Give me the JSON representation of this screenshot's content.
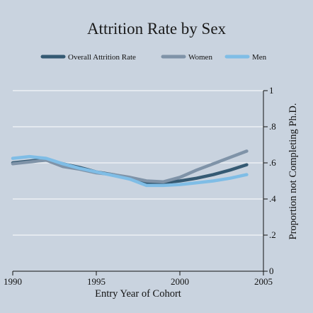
{
  "chart_data": {
    "type": "line",
    "title": "Attrition Rate by Sex",
    "xlabel": "Entry Year of Cohort",
    "ylabel": "Proportion not Completing Ph.D.",
    "xlim": [
      1990,
      2005
    ],
    "ylim": [
      0,
      1
    ],
    "x_ticks": [
      {
        "value": 1990,
        "label": "1990"
      },
      {
        "value": 1995,
        "label": "1995"
      },
      {
        "value": 2000,
        "label": "2000"
      },
      {
        "value": 2005,
        "label": "2005"
      }
    ],
    "y_ticks": [
      {
        "value": 0,
        "label": "0"
      },
      {
        "value": 0.2,
        "label": ".2"
      },
      {
        "value": 0.4,
        "label": ".4"
      },
      {
        "value": 0.6,
        "label": ".6"
      },
      {
        "value": 0.8,
        "label": ".8"
      },
      {
        "value": 1,
        "label": "1"
      }
    ],
    "y_axis_side": "right",
    "grid": true,
    "legend_position": "top",
    "colors": {
      "background": "#c9d3df",
      "grid": "#ffffff",
      "overall": "#355a73",
      "women": "#7f93a8",
      "men": "#7fbde6"
    },
    "series": [
      {
        "name": "Overall Attrition Rate",
        "color": "#355a73",
        "x": [
          1990,
          1991,
          1992,
          1993,
          1994,
          1995,
          1996,
          1997,
          1998,
          1999,
          2000,
          2001,
          2002,
          2003,
          2004
        ],
        "y": [
          0.6,
          0.61,
          0.62,
          0.595,
          0.575,
          0.55,
          0.535,
          0.515,
          0.49,
          0.49,
          0.5,
          0.515,
          0.535,
          0.56,
          0.59
        ]
      },
      {
        "name": "Women",
        "color": "#7f93a8",
        "x": [
          1990,
          1991,
          1992,
          1993,
          1994,
          1995,
          1996,
          1997,
          1998,
          1999,
          2000,
          2001,
          2002,
          2003,
          2004
        ],
        "y": [
          0.595,
          0.605,
          0.615,
          0.58,
          0.565,
          0.545,
          0.535,
          0.52,
          0.5,
          0.495,
          0.52,
          0.56,
          0.595,
          0.63,
          0.665
        ]
      },
      {
        "name": "Men",
        "color": "#7fbde6",
        "x": [
          1990,
          1991,
          1992,
          1993,
          1994,
          1995,
          1996,
          1997,
          1998,
          1999,
          2000,
          2001,
          2002,
          2003,
          2004
        ],
        "y": [
          0.625,
          0.635,
          0.625,
          0.595,
          0.57,
          0.55,
          0.53,
          0.51,
          0.475,
          0.475,
          0.48,
          0.49,
          0.5,
          0.515,
          0.535
        ]
      }
    ]
  }
}
